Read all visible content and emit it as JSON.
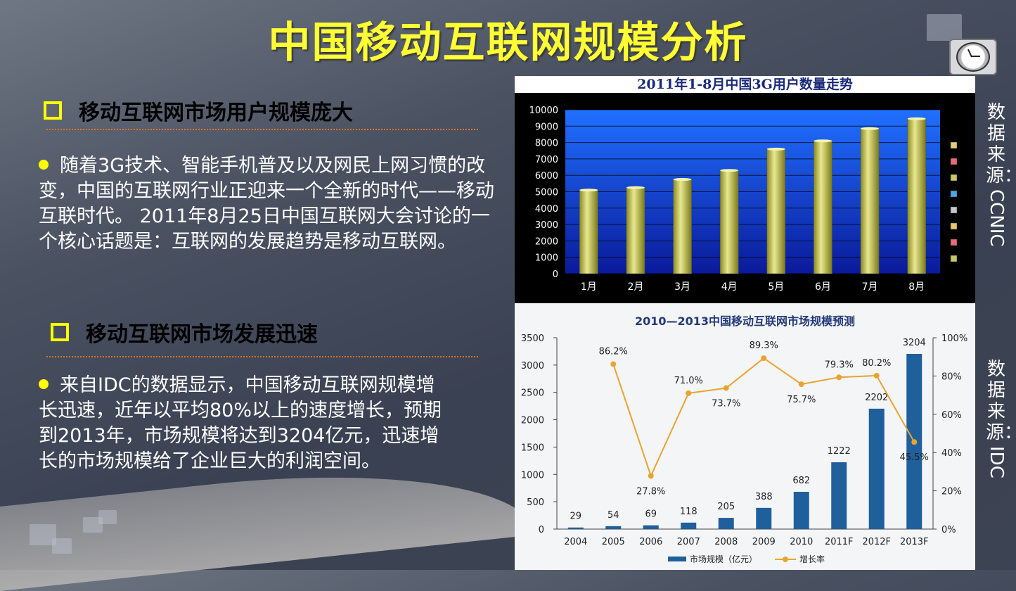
{
  "title": "中国移动互联网规模分析",
  "section1": {
    "heading": "移动互联网市场用户规模庞大",
    "text": "随着3G技术、智能手机普及以及网民上网习惯的改变，中国的互联网行业正迎来一个全新的时代——移动互联时代。 2011年8月25日中国互联网大会讨论的一个核心话题是：互联网的发展趋势是移动互联网。"
  },
  "section2": {
    "heading": "移动互联网市场发展迅速",
    "text": "来自IDC的数据显示，中国移动互联网规模增长迅速，近年以平均80%以上的速度增长，预期到2013年，市场规模将达到3204亿元，迅速增长的市场规模给了企业巨大的利润空间。"
  },
  "source1": {
    "cn": "数据来源：",
    "latin": "CCNIC"
  },
  "source2": {
    "cn": "数据来源：",
    "latin": "IDC"
  },
  "colors": {
    "title": "#ffff33",
    "accent": "#ffff00",
    "divider": "#e07020"
  },
  "icons": [
    "clock-icon"
  ],
  "chart_data": [
    {
      "type": "bar",
      "title": "2011年1-8月中国3G用户数量走势",
      "categories": [
        "1月",
        "2月",
        "3月",
        "4月",
        "5月",
        "6月",
        "7月",
        "8月"
      ],
      "values": [
        5100,
        5250,
        5750,
        6300,
        7600,
        8100,
        8850,
        9450
      ],
      "ylim": [
        0,
        10000
      ],
      "yticks": [
        "10000",
        "9000",
        "8000",
        "7000",
        "6000",
        "5000",
        "4000",
        "3000",
        "2000",
        "1000",
        "0"
      ],
      "grid": true
    },
    {
      "type": "bar",
      "title": "2010—2013中国移动互联网市场规模预测",
      "categories": [
        "2004",
        "2005",
        "2006",
        "2007",
        "2008",
        "2009",
        "2010",
        "2011F",
        "2012F",
        "2013F"
      ],
      "series": [
        {
          "name": "市场规模（亿元）",
          "type": "bar",
          "values": [
            29,
            54,
            69,
            118,
            205,
            388,
            682,
            1222,
            2202,
            3204
          ],
          "labels": [
            "29",
            "54",
            "69",
            "118",
            "205",
            "388",
            "682",
            "1222",
            "2202",
            "3204"
          ]
        },
        {
          "name": "增长率",
          "type": "line",
          "values": [
            null,
            86.2,
            27.8,
            71.0,
            73.7,
            89.3,
            75.7,
            79.3,
            80.2,
            45.5
          ],
          "labels": [
            "",
            "86.2%",
            "27.8%",
            "71.0%",
            "73.7%",
            "89.3%",
            "75.7%",
            "79.3%",
            "80.2%",
            "45.5%"
          ]
        }
      ],
      "ylim": [
        0,
        3500
      ],
      "y2lim": [
        0,
        100
      ],
      "yticks": [
        "3500",
        "3000",
        "2500",
        "2000",
        "1500",
        "1000",
        "500",
        "0"
      ],
      "y2ticks": [
        "100%",
        "80%",
        "60%",
        "40%",
        "20%",
        "0%"
      ],
      "legend": "bottom"
    }
  ]
}
